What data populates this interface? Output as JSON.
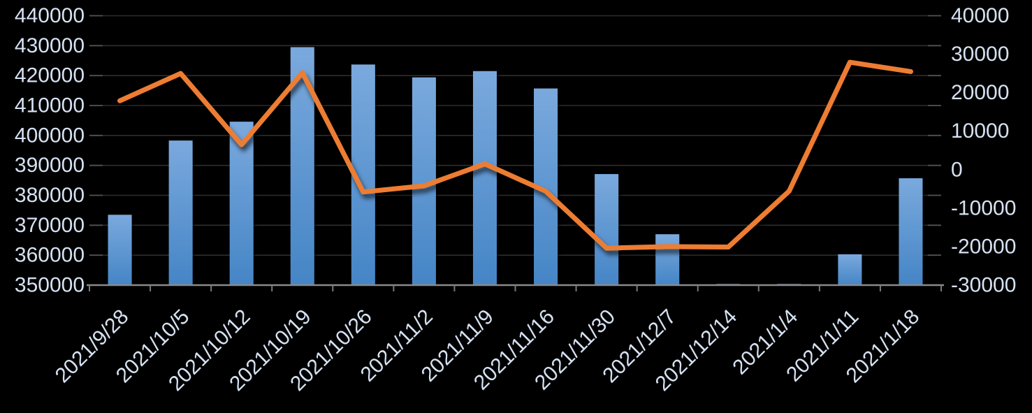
{
  "chart_data": {
    "type": "combo-bar-line",
    "title": "",
    "legend": "none",
    "grid": true,
    "categories": [
      "2021/9/28",
      "2021/10/5",
      "2021/10/12",
      "2021/10/19",
      "2021/10/26",
      "2021/11/2",
      "2021/11/9",
      "2021/11/16",
      "2021/11/30",
      "2021/12/7",
      "2021/12/14",
      "2021/1/4",
      "2021/1/11",
      "2021/1/18"
    ],
    "series": [
      {
        "name": "bars",
        "type": "bar",
        "axis": "left",
        "values": [
          373500,
          398300,
          404600,
          429500,
          423700,
          419400,
          421500,
          415700,
          387100,
          367000,
          350200,
          350200,
          360300,
          385700
        ]
      },
      {
        "name": "line",
        "type": "line",
        "axis": "right",
        "values": [
          17900,
          25000,
          6500,
          25200,
          -5800,
          -4200,
          1500,
          -5600,
          -20400,
          -20000,
          -20100,
          -5600,
          27900,
          25500
        ]
      }
    ],
    "left_axis": {
      "min": 350000,
      "max": 440000,
      "step": 10000,
      "tick_labels": [
        "440000",
        "430000",
        "420000",
        "410000",
        "400000",
        "390000",
        "380000",
        "370000",
        "360000",
        "350000"
      ]
    },
    "right_axis": {
      "min": -30000,
      "max": 40000,
      "step": 10000,
      "tick_labels": [
        "40000",
        "30000",
        "20000",
        "10000",
        "0",
        "-10000",
        "-20000",
        "-30000"
      ]
    },
    "colors": {
      "background": "#000000",
      "bar_gradient_top": "#7AA9DD",
      "bar_gradient_bottom": "#4585C6",
      "line": "#ED7D31",
      "axis_text": "#D6E2F2",
      "gridline": "#2E2E2E",
      "tick_stub": "#525252",
      "x_axis_line": "#8A8A8A",
      "x_tick": "#7A7A7A"
    }
  }
}
